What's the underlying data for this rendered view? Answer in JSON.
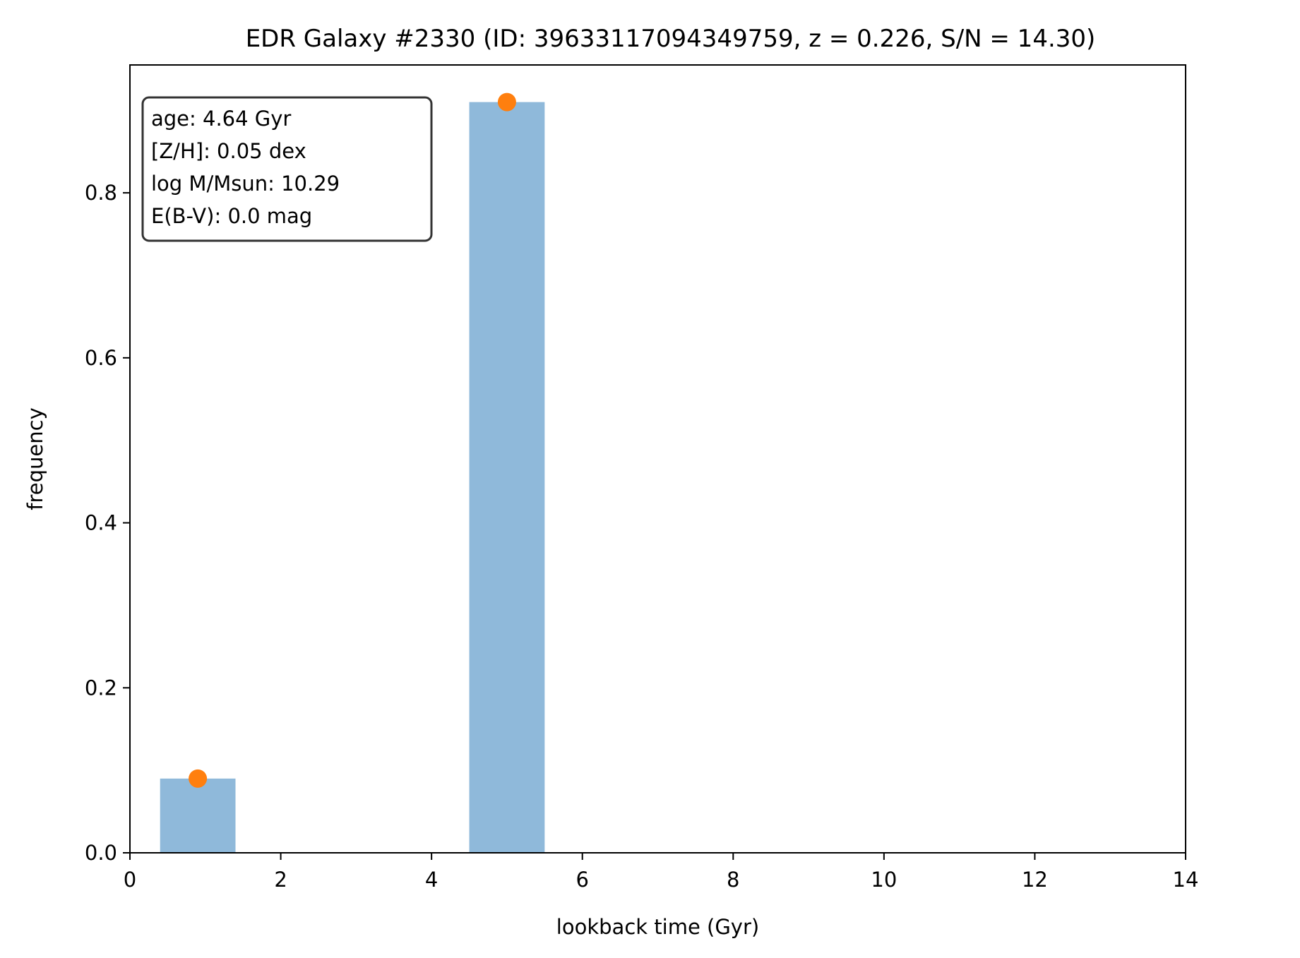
{
  "chart_data": {
    "type": "bar",
    "title": "EDR Galaxy #2330 (ID: 39633117094349759, z = 0.226, S/N = 14.30)",
    "xlabel": "lookback time (Gyr)",
    "ylabel": "frequency",
    "xlim": [
      0,
      14
    ],
    "ylim": [
      0,
      0.955
    ],
    "xticks": [
      0,
      2,
      4,
      6,
      8,
      10,
      12,
      14
    ],
    "yticks": [
      0.0,
      0.2,
      0.4,
      0.6,
      0.8
    ],
    "xtick_labels": [
      "0",
      "2",
      "4",
      "6",
      "8",
      "10",
      "12",
      "14"
    ],
    "ytick_labels": [
      "0.0",
      "0.2",
      "0.4",
      "0.6",
      "0.8"
    ],
    "grid": false,
    "bars": [
      {
        "x_start": 0.4,
        "x_end": 1.4,
        "value": 0.09
      },
      {
        "x_start": 4.5,
        "x_end": 5.5,
        "value": 0.91
      }
    ],
    "points": [
      {
        "x": 0.9,
        "y": 0.09
      },
      {
        "x": 5.0,
        "y": 0.91
      }
    ],
    "annotation": {
      "placement": "top-left",
      "lines": [
        "age: 4.64 Gyr",
        "[Z/H]: 0.05 dex",
        "log M/Msun: 10.29",
        "E(B-V): 0.0 mag"
      ]
    },
    "colors": {
      "bar": "#8fb9da",
      "point": "#ff7f0e",
      "axes": "#000000",
      "annotation_border": "#333333"
    }
  }
}
